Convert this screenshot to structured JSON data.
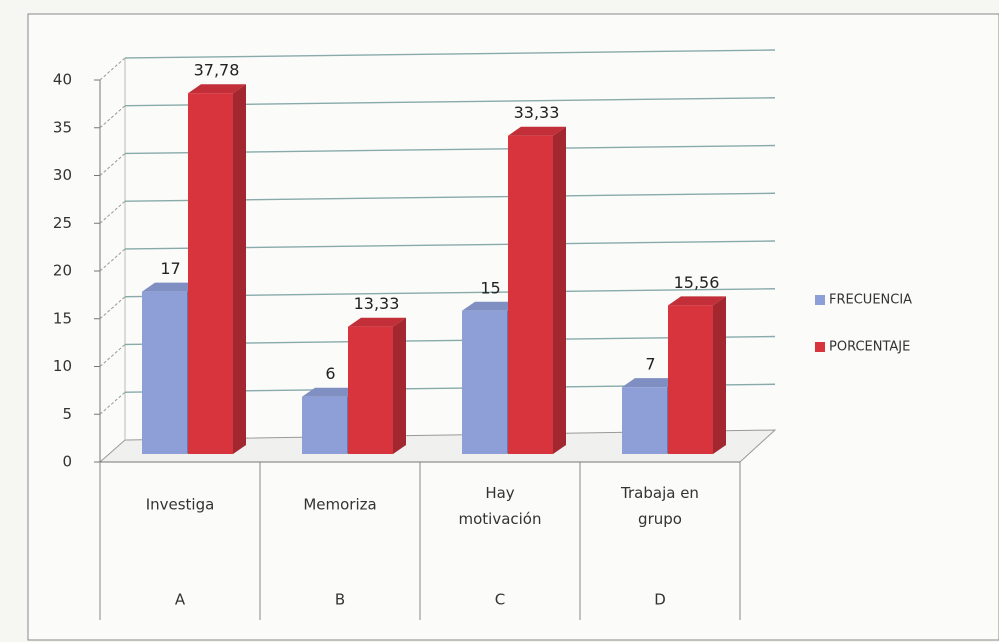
{
  "chart_data": {
    "type": "bar3d",
    "categories": [
      "Investiga",
      "Memoriza",
      "Hay motivación",
      "Trabaja en grupo"
    ],
    "groups": [
      "A",
      "B",
      "C",
      "D"
    ],
    "series": [
      {
        "name": "FRECUENCIA",
        "color": "#8e9fd8",
        "values": [
          17,
          6,
          15,
          7
        ]
      },
      {
        "name": "PORCENTAJE",
        "color": "#d8343e",
        "values": [
          37.78,
          13.33,
          33.33,
          15.56
        ],
        "value_labels": [
          "37,78",
          "13,33",
          "33,33",
          "15,56"
        ]
      }
    ],
    "ylim": [
      0,
      40
    ],
    "yticks": [
      0,
      5,
      10,
      15,
      20,
      25,
      30,
      35,
      40
    ],
    "grid": true
  }
}
